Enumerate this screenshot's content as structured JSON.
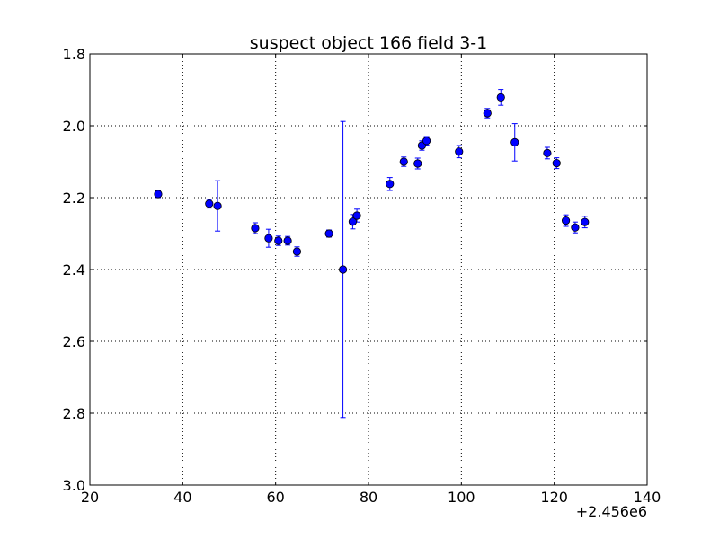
{
  "chart_data": {
    "type": "scatter",
    "title": "suspect object 166 field 3-1",
    "xlabel": "",
    "ylabel": "",
    "xlim": [
      20,
      140
    ],
    "ylim": [
      3.0,
      1.8
    ],
    "y_inverted": true,
    "x_offset_label": "+2.456e6",
    "x_ticks": [
      20,
      40,
      60,
      80,
      100,
      120,
      140
    ],
    "x_tick_labels": [
      "20",
      "40",
      "60",
      "80",
      "100",
      "120",
      "140"
    ],
    "y_ticks": [
      1.8,
      2.0,
      2.2,
      2.4,
      2.6,
      2.8,
      3.0
    ],
    "y_tick_labels": [
      "1.8",
      "2.0",
      "2.2",
      "2.4",
      "2.6",
      "2.8",
      "3.0"
    ],
    "grid": true,
    "marker_color": "#0000ff",
    "points": [
      {
        "x": 34.7,
        "y": 2.19,
        "yerr": 0.01
      },
      {
        "x": 45.7,
        "y": 2.217,
        "yerr": 0.012
      },
      {
        "x": 47.5,
        "y": 2.223,
        "yerr": 0.07
      },
      {
        "x": 55.6,
        "y": 2.285,
        "yerr": 0.015
      },
      {
        "x": 58.5,
        "y": 2.313,
        "yerr": 0.025
      },
      {
        "x": 60.6,
        "y": 2.32,
        "yerr": 0.013
      },
      {
        "x": 62.6,
        "y": 2.32,
        "yerr": 0.012
      },
      {
        "x": 64.6,
        "y": 2.35,
        "yerr": 0.013
      },
      {
        "x": 71.5,
        "y": 2.3,
        "yerr": 0.01
      },
      {
        "x": 74.5,
        "y": 2.4,
        "yerr": 0.412
      },
      {
        "x": 76.6,
        "y": 2.267,
        "yerr": 0.02
      },
      {
        "x": 77.5,
        "y": 2.25,
        "yerr": 0.018
      },
      {
        "x": 84.6,
        "y": 2.162,
        "yerr": 0.018
      },
      {
        "x": 87.6,
        "y": 2.1,
        "yerr": 0.013
      },
      {
        "x": 90.6,
        "y": 2.105,
        "yerr": 0.015
      },
      {
        "x": 91.5,
        "y": 2.055,
        "yerr": 0.013
      },
      {
        "x": 92.5,
        "y": 2.042,
        "yerr": 0.012
      },
      {
        "x": 99.5,
        "y": 2.072,
        "yerr": 0.017
      },
      {
        "x": 105.6,
        "y": 1.965,
        "yerr": 0.013
      },
      {
        "x": 108.5,
        "y": 1.921,
        "yerr": 0.022
      },
      {
        "x": 111.5,
        "y": 2.046,
        "yerr": 0.052
      },
      {
        "x": 118.5,
        "y": 2.076,
        "yerr": 0.016
      },
      {
        "x": 120.5,
        "y": 2.104,
        "yerr": 0.015
      },
      {
        "x": 122.5,
        "y": 2.264,
        "yerr": 0.016
      },
      {
        "x": 124.5,
        "y": 2.283,
        "yerr": 0.015
      },
      {
        "x": 126.6,
        "y": 2.268,
        "yerr": 0.016
      }
    ]
  }
}
